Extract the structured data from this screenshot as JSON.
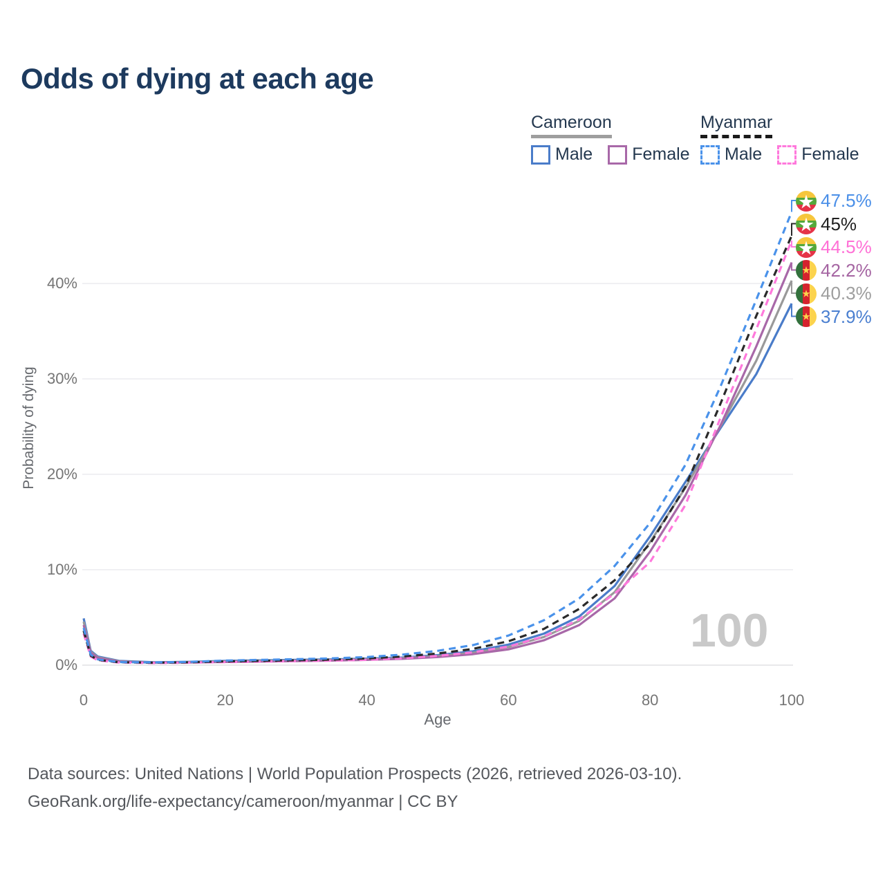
{
  "title": "Odds of dying at each age",
  "watermark": "100",
  "legend": {
    "groups": [
      {
        "name": "Cameroon",
        "line_style": "solid",
        "underline_color": "#9e9e9e",
        "items": [
          {
            "label": "Male",
            "color": "#4a7cc9",
            "dash": false
          },
          {
            "label": "Female",
            "color": "#a868a8",
            "dash": false
          }
        ]
      },
      {
        "name": "Myanmar",
        "line_style": "dashed",
        "underline_color": "#1a1a1a",
        "items": [
          {
            "label": "Male",
            "color": "#4a92ea",
            "dash": true
          },
          {
            "label": "Female",
            "color": "#ff79dc",
            "dash": true
          }
        ]
      }
    ]
  },
  "flags": {
    "myanmar": {
      "orientation": "horizontal",
      "stripes": [
        "#f6c63c",
        "#55a83b",
        "#e53347"
      ],
      "star_color": "#ffffff"
    },
    "cameroon": {
      "orientation": "vertical",
      "stripes": [
        "#33713d",
        "#d5232e",
        "#fcd34d"
      ],
      "star_color": "#fcd34d"
    }
  },
  "chart_data": {
    "type": "line",
    "title": "Odds of dying at each age",
    "xlabel": "Age",
    "ylabel": "Probability of dying",
    "x_ticks": [
      0,
      20,
      40,
      60,
      80,
      100
    ],
    "y_ticks": [
      "0%",
      "10%",
      "20%",
      "30%",
      "40%"
    ],
    "y_tick_values": [
      0,
      10,
      20,
      30,
      40
    ],
    "xlim": [
      0,
      100
    ],
    "ylim": [
      0,
      48
    ],
    "grid": "horizontal",
    "legend_position": "top-right",
    "x": [
      0,
      1,
      2,
      5,
      10,
      15,
      20,
      25,
      30,
      35,
      40,
      45,
      50,
      55,
      60,
      65,
      70,
      75,
      80,
      85,
      90,
      95,
      100
    ],
    "series": [
      {
        "name": "Myanmar Male",
        "country": "Myanmar",
        "sex": "Male",
        "color": "#4a92ea",
        "dashed": true,
        "flag": "myanmar",
        "end_label": "47.5%",
        "end_label_color": "#4a8fe8",
        "values": [
          3.9,
          1.1,
          0.6,
          0.32,
          0.28,
          0.35,
          0.48,
          0.55,
          0.62,
          0.7,
          0.85,
          1.1,
          1.5,
          2.1,
          3.1,
          4.7,
          7.0,
          10.4,
          14.9,
          21.0,
          29.3,
          38.3,
          47.5
        ]
      },
      {
        "name": "Myanmar",
        "country": "Myanmar",
        "sex": "Both",
        "color": "#2a2a2a",
        "dashed": true,
        "flag": "myanmar",
        "end_label": "45%",
        "end_label_color": "#1f1f1f",
        "values": [
          3.6,
          1.0,
          0.55,
          0.3,
          0.25,
          0.3,
          0.39,
          0.45,
          0.51,
          0.58,
          0.7,
          0.9,
          1.22,
          1.7,
          2.5,
          3.8,
          5.9,
          8.9,
          12.7,
          18.7,
          27.5,
          36.6,
          45.0
        ]
      },
      {
        "name": "Myanmar Female",
        "country": "Myanmar",
        "sex": "Female",
        "color": "#ff79dc",
        "dashed": true,
        "flag": "myanmar",
        "end_label": "44.5%",
        "end_label_color": "#ff70d6",
        "values": [
          3.3,
          0.9,
          0.5,
          0.27,
          0.22,
          0.26,
          0.31,
          0.36,
          0.41,
          0.47,
          0.56,
          0.72,
          0.97,
          1.35,
          1.95,
          3.0,
          4.8,
          7.5,
          10.8,
          16.8,
          26.0,
          35.2,
          44.5
        ]
      },
      {
        "name": "Cameroon Female",
        "country": "Cameroon",
        "sex": "Female",
        "color": "#a868a8",
        "dashed": false,
        "flag": "cameroon",
        "end_label": "42.2%",
        "end_label_color": "#a565a2",
        "values": [
          4.2,
          1.3,
          0.75,
          0.38,
          0.25,
          0.28,
          0.33,
          0.38,
          0.43,
          0.48,
          0.55,
          0.66,
          0.85,
          1.15,
          1.65,
          2.6,
          4.2,
          7.0,
          11.9,
          17.8,
          25.2,
          33.4,
          42.2
        ]
      },
      {
        "name": "Cameroon",
        "country": "Cameroon",
        "sex": "Both",
        "color": "#999999",
        "dashed": false,
        "flag": "cameroon",
        "end_label": "40.3%",
        "end_label_color": "#9e9e9e",
        "values": [
          4.55,
          1.4,
          0.82,
          0.41,
          0.27,
          0.31,
          0.39,
          0.44,
          0.49,
          0.54,
          0.61,
          0.73,
          0.95,
          1.3,
          1.9,
          2.95,
          4.65,
          7.65,
          12.9,
          18.6,
          25.1,
          31.9,
          40.3
        ]
      },
      {
        "name": "Cameroon Male",
        "country": "Cameroon",
        "sex": "Male",
        "color": "#4a7cc9",
        "dashed": false,
        "flag": "cameroon",
        "end_label": "37.9%",
        "end_label_color": "#4a7fd0",
        "values": [
          4.9,
          1.5,
          0.9,
          0.45,
          0.3,
          0.35,
          0.45,
          0.5,
          0.55,
          0.6,
          0.68,
          0.8,
          1.05,
          1.45,
          2.15,
          3.3,
          5.1,
          8.3,
          13.5,
          19.2,
          24.9,
          30.5,
          37.9
        ]
      }
    ]
  },
  "footer": {
    "line1": "Data sources: United Nations | World Population Prospects (2026, retrieved 2026-03-10).",
    "line2": "GeoRank.org/life-expectancy/cameroon/myanmar | CC BY"
  }
}
